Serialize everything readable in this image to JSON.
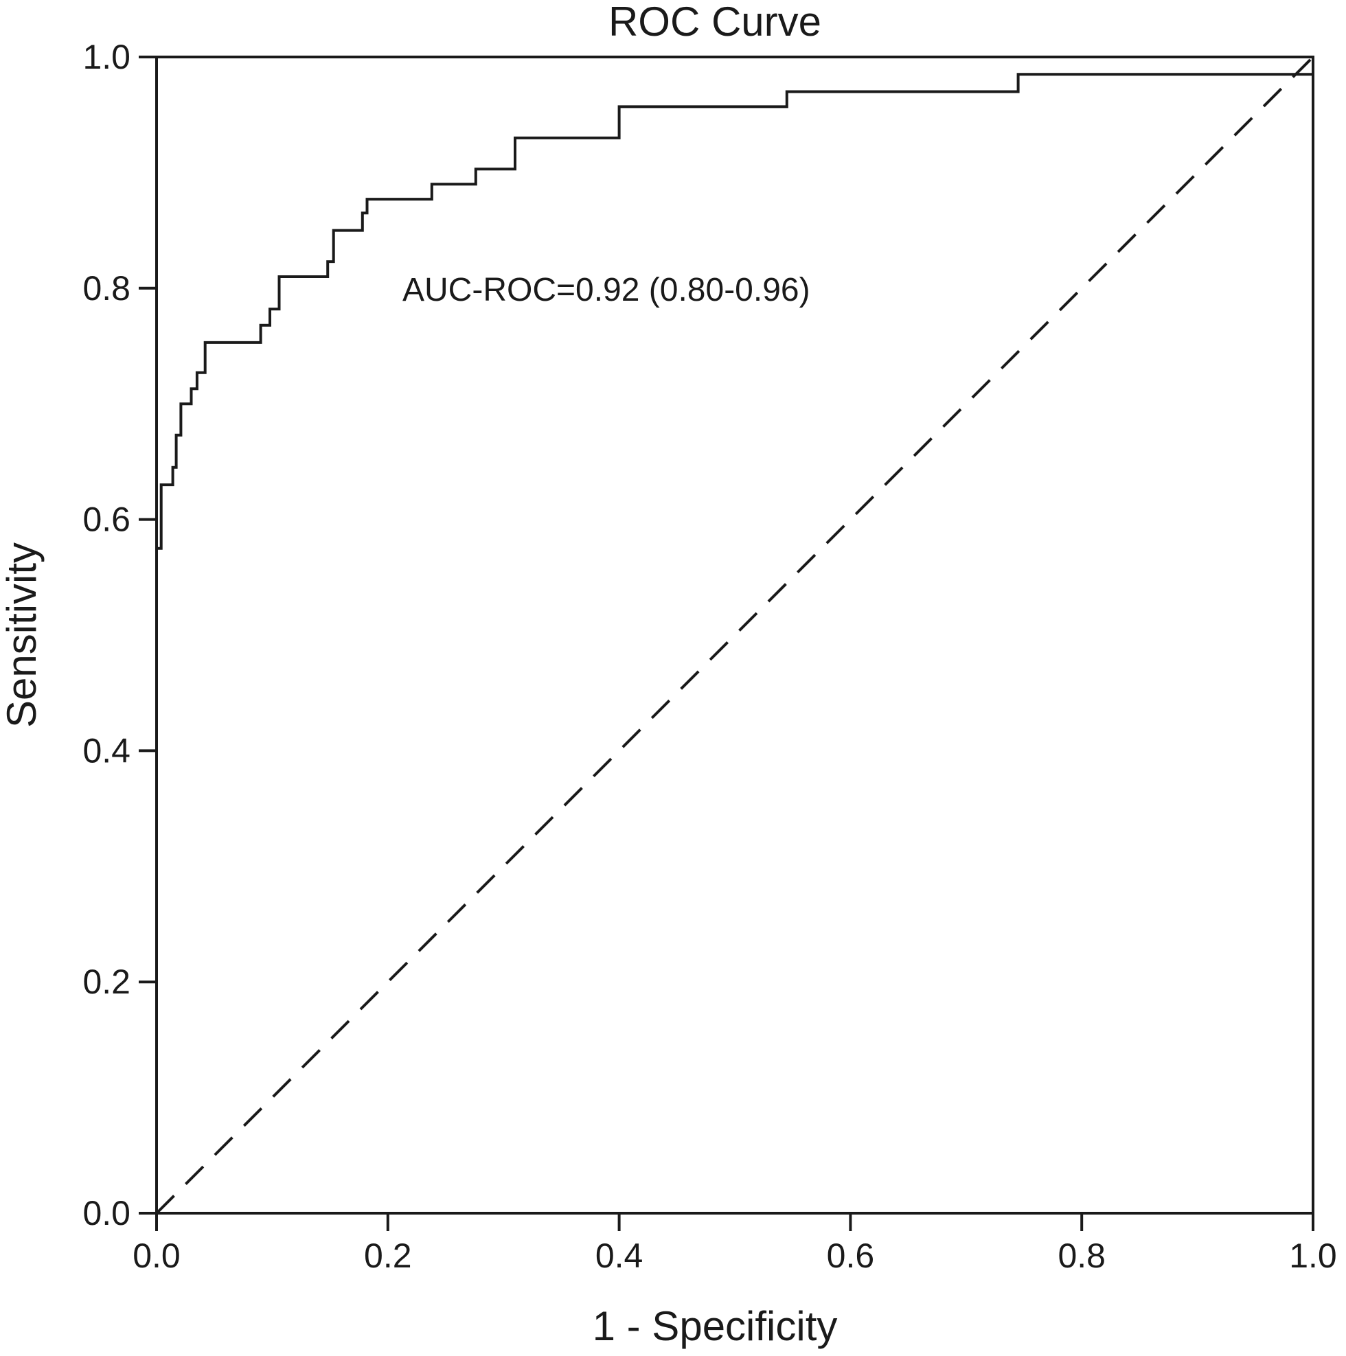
{
  "chart_data": {
    "type": "line",
    "title": "ROC Curve",
    "xlabel": "1 - Specificity",
    "ylabel": "Sensitivity",
    "xlim": [
      0,
      1
    ],
    "ylim": [
      0,
      1
    ],
    "xticks": [
      "0.0",
      "0.2",
      "0.4",
      "0.6",
      "0.8",
      "1.0"
    ],
    "yticks": [
      "0.0",
      "0.2",
      "0.4",
      "0.6",
      "0.8",
      "1.0"
    ],
    "grid": false,
    "legend": "none",
    "annotation": "AUC-ROC=0.92 (0.80-0.96)",
    "series": [
      {
        "style": "solid",
        "color": "#1a1a1a",
        "x": [
          0.0,
          0.0,
          0.004,
          0.004,
          0.014,
          0.014,
          0.017,
          0.017,
          0.021,
          0.021,
          0.03,
          0.03,
          0.035,
          0.035,
          0.042,
          0.042,
          0.09,
          0.09,
          0.098,
          0.098,
          0.106,
          0.106,
          0.148,
          0.148,
          0.153,
          0.153,
          0.178,
          0.178,
          0.182,
          0.182,
          0.238,
          0.238,
          0.276,
          0.276,
          0.31,
          0.31,
          0.4,
          0.4,
          0.545,
          0.545,
          0.745,
          0.745,
          1.0,
          1.0
        ],
        "y": [
          0.0,
          0.575,
          0.575,
          0.63,
          0.63,
          0.645,
          0.645,
          0.673,
          0.673,
          0.7,
          0.7,
          0.713,
          0.713,
          0.727,
          0.727,
          0.753,
          0.753,
          0.768,
          0.768,
          0.782,
          0.782,
          0.81,
          0.81,
          0.823,
          0.823,
          0.85,
          0.85,
          0.865,
          0.865,
          0.877,
          0.877,
          0.89,
          0.89,
          0.903,
          0.903,
          0.93,
          0.93,
          0.957,
          0.957,
          0.97,
          0.97,
          0.985,
          0.985,
          1.0
        ]
      },
      {
        "style": "dashed",
        "color": "#1a1a1a",
        "x": [
          0,
          1
        ],
        "y": [
          0,
          1
        ]
      }
    ]
  }
}
